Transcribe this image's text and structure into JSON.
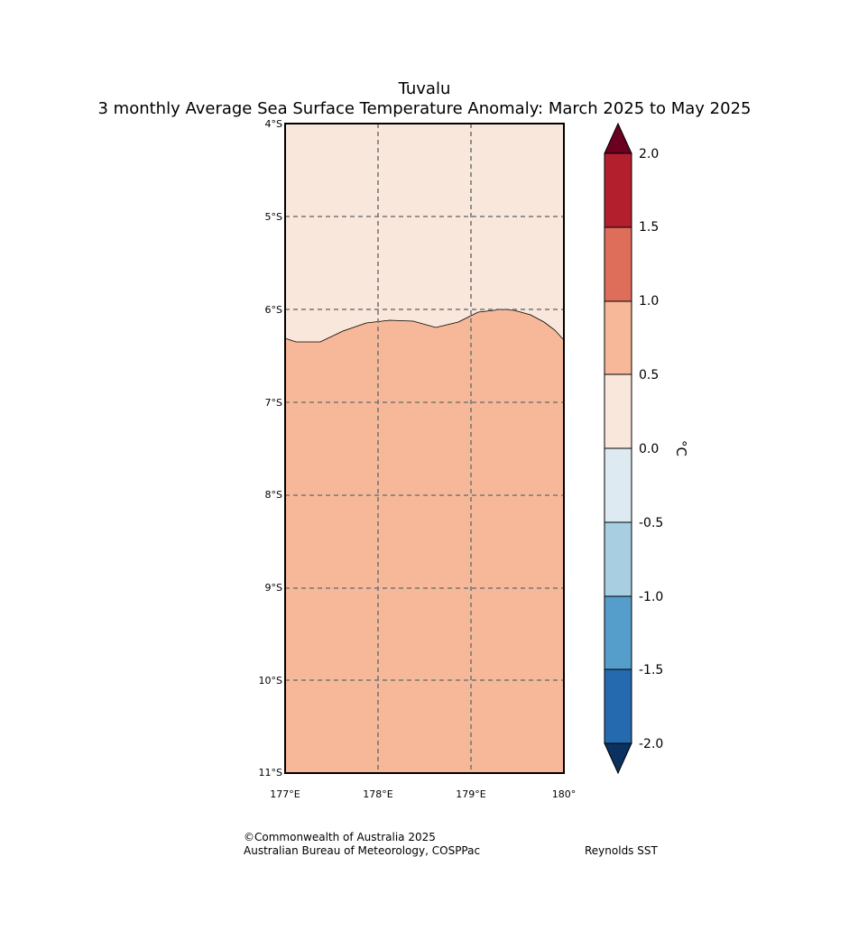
{
  "title": "Tuvalu",
  "subtitle": "3 monthly Average Sea Surface Temperature Anomaly: March 2025 to May 2025",
  "map": {
    "lat_labels": [
      "4°S",
      "5°S",
      "6°S",
      "7°S",
      "8°S",
      "9°S",
      "10°S",
      "11°S"
    ],
    "lon_labels": [
      "177°E",
      "178°E",
      "179°E",
      "180°"
    ],
    "lat_range": [
      -11,
      -4
    ],
    "lon_range": [
      177,
      180
    ],
    "regions": [
      {
        "name": "anomaly-0.0-0.5",
        "color": "#f9e7dc"
      },
      {
        "name": "anomaly-0.5-1.0",
        "color": "#f6b898"
      }
    ]
  },
  "colorbar": {
    "unit": "°C",
    "ticks": [
      "2.0",
      "1.5",
      "1.0",
      "0.5",
      "0.0",
      "-0.5",
      "-1.0",
      "-1.5",
      "-2.0"
    ],
    "colors": [
      "#b41f2e",
      "#de6e5a",
      "#f6b898",
      "#f9e7dc",
      "#deeaf1",
      "#a8cee2",
      "#559ecb",
      "#256aaf"
    ],
    "over_color": "#6b0020",
    "under_color": "#0b3160"
  },
  "footer": {
    "copyright": "©Commonwealth of Australia 2025",
    "agency": "Australian Bureau of Meteorology, COSPPac",
    "source": "Reynolds SST"
  }
}
